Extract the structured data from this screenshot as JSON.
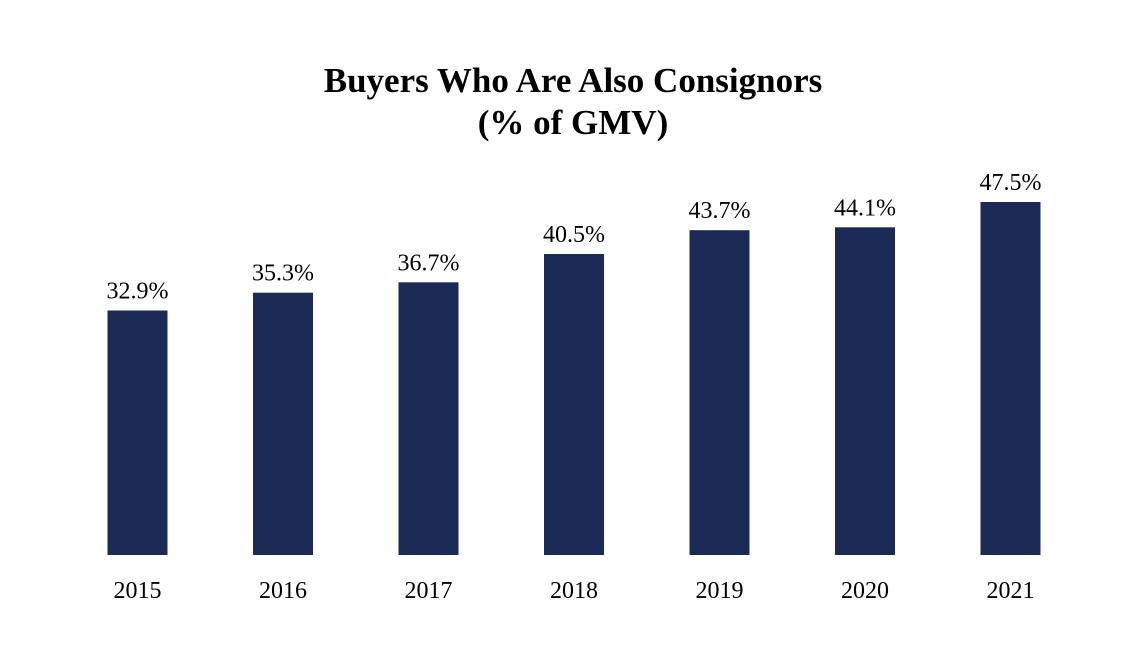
{
  "chart_data": {
    "type": "bar",
    "title_lines": [
      "Buyers Who Are Also Consignors",
      "(% of GMV)"
    ],
    "categories": [
      "2015",
      "2016",
      "2017",
      "2018",
      "2019",
      "2020",
      "2021"
    ],
    "values": [
      32.9,
      35.3,
      36.7,
      40.5,
      43.7,
      44.1,
      47.5
    ],
    "data_labels": [
      "32.9%",
      "35.3%",
      "36.7%",
      "40.5%",
      "43.7%",
      "44.1%",
      "47.5%"
    ],
    "xlabel": "",
    "ylabel": "",
    "ylim": [
      0,
      47.5
    ],
    "grid": false,
    "legend": "none",
    "bar_color": "#1c2a56"
  }
}
